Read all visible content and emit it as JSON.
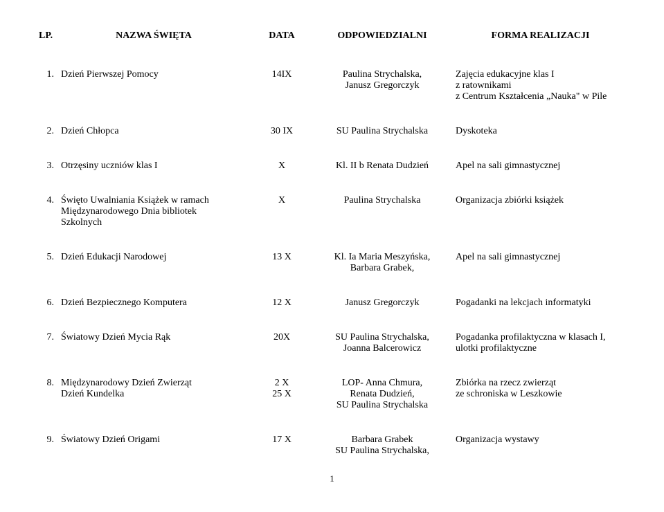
{
  "headers": {
    "lp": "LP.",
    "name": "NAZWA ŚWIĘTA",
    "date": "DATA",
    "resp": "ODPOWIEDZIALNI",
    "form": "FORMA REALIZACJI"
  },
  "rows": [
    {
      "lp": "1.",
      "name": "Dzień Pierwszej Pomocy",
      "date": "14IX",
      "resp": "Paulina Strychalska,\nJanusz Gregorczyk",
      "form": "Zajęcia edukacyjne klas I\n z ratownikami\n z Centrum Kształcenia „Nauka\" w Pile"
    },
    {
      "lp": "2.",
      "name": "Dzień Chłopca",
      "date": "30 IX",
      "resp": "SU Paulina Strychalska",
      "form": "Dyskoteka"
    },
    {
      "lp": "3.",
      "name": "Otrzęsiny uczniów klas I",
      "date": "X",
      "resp": "Kl. II b Renata Dudzień",
      "form": "Apel na sali gimnastycznej"
    },
    {
      "lp": "4.",
      "name": "Święto Uwalniania Książek w ramach\nMiędzynarodowego Dnia bibliotek\nSzkolnych",
      "date": "X",
      "resp": "Paulina Strychalska",
      "form": "Organizacja zbiórki książek"
    },
    {
      "lp": "5.",
      "name": "Dzień Edukacji Narodowej",
      "date": "13 X",
      "resp": "Kl. Ia Maria Meszyńska,\nBarbara Grabek,",
      "form": "Apel na sali gimnastycznej"
    },
    {
      "lp": "6.",
      "name": "Dzień Bezpiecznego Komputera",
      "date": "12 X",
      "resp": "Janusz Gregorczyk",
      "form": "Pogadanki na lekcjach informatyki"
    },
    {
      "lp": "7.",
      "name": "Światowy Dzień Mycia Rąk",
      "date": "20X",
      "resp": "SU Paulina Strychalska,\nJoanna Balcerowicz",
      "form": "Pogadanka profilaktyczna w klasach I,\nulotki profilaktyczne"
    },
    {
      "lp": "8.",
      "name": "Międzynarodowy Dzień Zwierząt\nDzień Kundelka",
      "date": "2 X\n25 X",
      "resp": "LOP- Anna Chmura,\nRenata Dudzień,\nSU Paulina Strychalska",
      "form": "Zbiórka na rzecz zwierząt\n ze schroniska w Leszkowie"
    },
    {
      "lp": "9.",
      "name": "Światowy Dzień Origami",
      "date": "17 X",
      "resp": "Barbara Grabek\nSU Paulina Strychalska,",
      "form": "Organizacja wystawy"
    }
  ],
  "pageNumber": "1"
}
